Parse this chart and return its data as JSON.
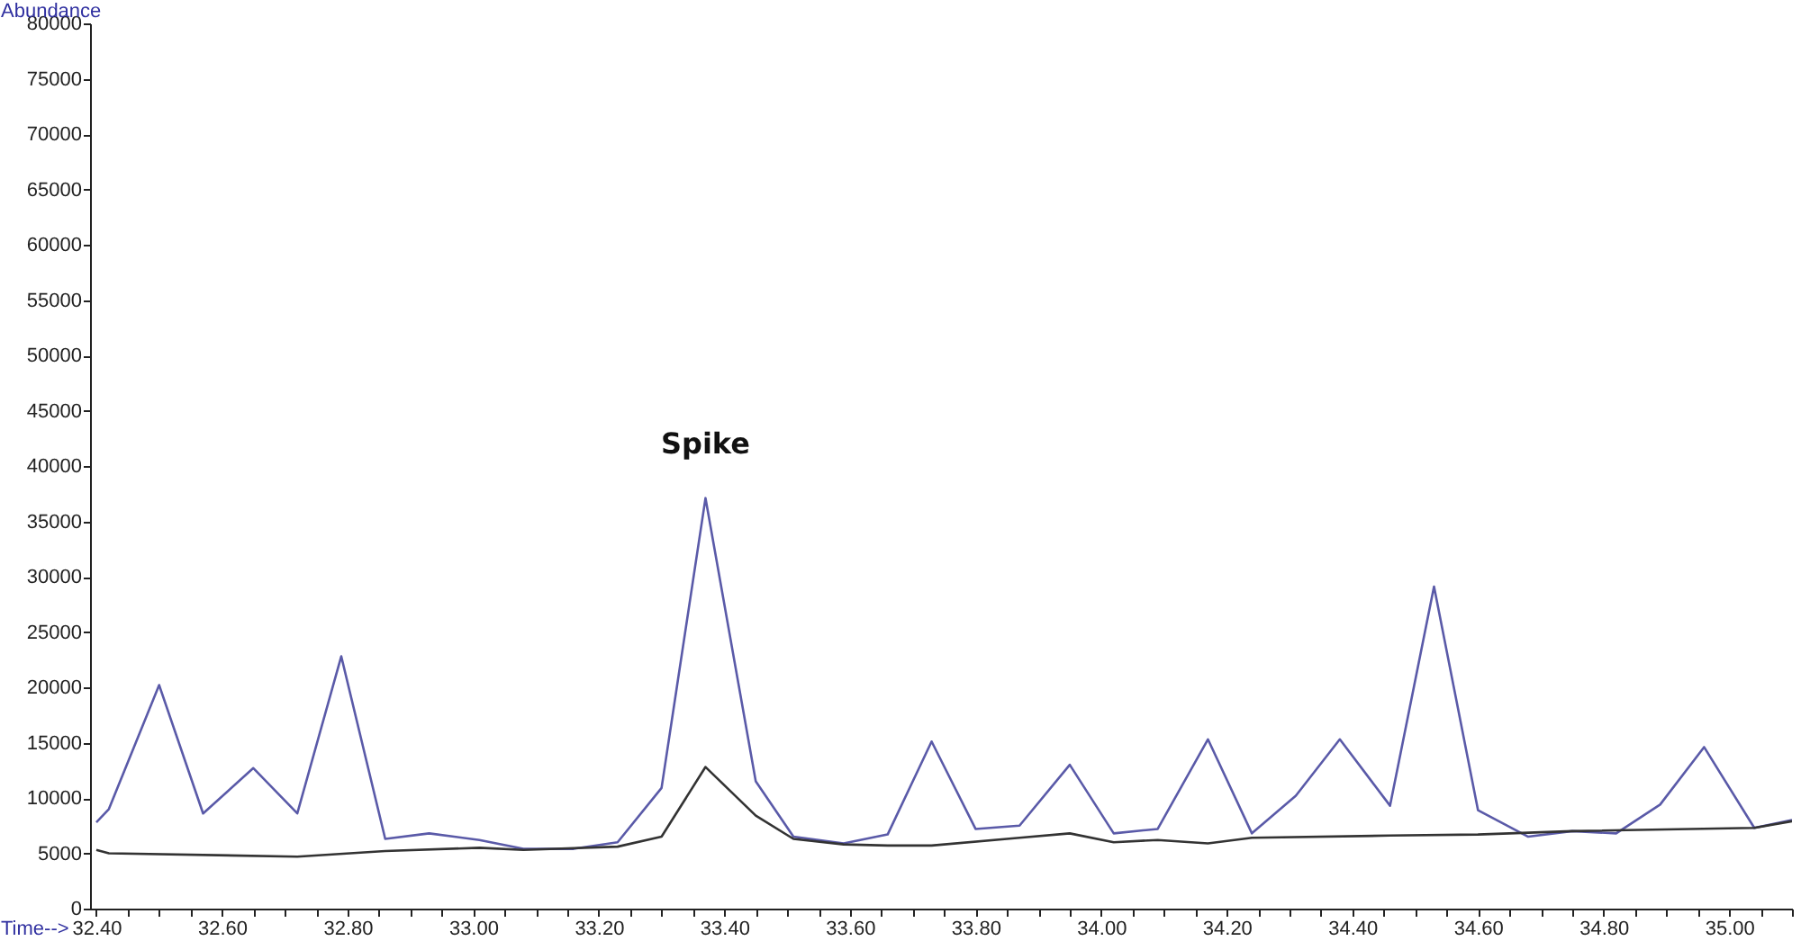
{
  "chart_data": {
    "type": "line",
    "xlabel": "Time-->",
    "ylabel": "Abundance",
    "xlim": [
      32.39,
      35.1
    ],
    "ylim": [
      0,
      80000
    ],
    "yticks": [
      0,
      5000,
      10000,
      15000,
      20000,
      25000,
      30000,
      35000,
      40000,
      45000,
      50000,
      55000,
      60000,
      65000,
      70000,
      75000,
      80000
    ],
    "xticks": [
      {
        "value": 32.4,
        "label": "32.40"
      },
      {
        "value": 32.45,
        "label": null
      },
      {
        "value": 32.5,
        "label": null
      },
      {
        "value": 32.55,
        "label": null
      },
      {
        "value": 32.6,
        "label": "32.60"
      },
      {
        "value": 32.65,
        "label": null
      },
      {
        "value": 32.7,
        "label": null
      },
      {
        "value": 32.75,
        "label": null
      },
      {
        "value": 32.8,
        "label": "32.80"
      },
      {
        "value": 32.85,
        "label": null
      },
      {
        "value": 32.9,
        "label": null
      },
      {
        "value": 32.95,
        "label": null
      },
      {
        "value": 33.0,
        "label": "33.00"
      },
      {
        "value": 33.05,
        "label": null
      },
      {
        "value": 33.1,
        "label": null
      },
      {
        "value": 33.15,
        "label": null
      },
      {
        "value": 33.2,
        "label": "33.20"
      },
      {
        "value": 33.25,
        "label": null
      },
      {
        "value": 33.3,
        "label": null
      },
      {
        "value": 33.35,
        "label": null
      },
      {
        "value": 33.4,
        "label": "33.40"
      },
      {
        "value": 33.45,
        "label": null
      },
      {
        "value": 33.5,
        "label": null
      },
      {
        "value": 33.55,
        "label": null
      },
      {
        "value": 33.6,
        "label": "33.60"
      },
      {
        "value": 33.65,
        "label": null
      },
      {
        "value": 33.7,
        "label": null
      },
      {
        "value": 33.75,
        "label": null
      },
      {
        "value": 33.8,
        "label": "33.80"
      },
      {
        "value": 33.85,
        "label": null
      },
      {
        "value": 33.9,
        "label": null
      },
      {
        "value": 33.95,
        "label": null
      },
      {
        "value": 34.0,
        "label": "34.00"
      },
      {
        "value": 34.05,
        "label": null
      },
      {
        "value": 34.1,
        "label": null
      },
      {
        "value": 34.15,
        "label": null
      },
      {
        "value": 34.2,
        "label": "34.20"
      },
      {
        "value": 34.25,
        "label": null
      },
      {
        "value": 34.3,
        "label": null
      },
      {
        "value": 34.35,
        "label": null
      },
      {
        "value": 34.4,
        "label": "34.40"
      },
      {
        "value": 34.45,
        "label": null
      },
      {
        "value": 34.5,
        "label": null
      },
      {
        "value": 34.55,
        "label": null
      },
      {
        "value": 34.6,
        "label": "34.60"
      },
      {
        "value": 34.65,
        "label": null
      },
      {
        "value": 34.7,
        "label": null
      },
      {
        "value": 34.75,
        "label": null
      },
      {
        "value": 34.8,
        "label": "34.80"
      },
      {
        "value": 34.85,
        "label": null
      },
      {
        "value": 34.9,
        "label": null
      },
      {
        "value": 34.95,
        "label": null
      },
      {
        "value": 35.0,
        "label": "35.00"
      },
      {
        "value": 35.05,
        "label": null
      },
      {
        "value": 35.1,
        "label": null
      }
    ],
    "grid": false,
    "marker": "none",
    "line_style": "solid",
    "annotations": [
      {
        "text": "Spike",
        "x": 33.37,
        "y": 37100
      }
    ],
    "series": [
      {
        "color": "#5a5aa8",
        "x": [
          32.4,
          32.42,
          32.5,
          32.57,
          32.65,
          32.72,
          32.79,
          32.86,
          32.93,
          33.01,
          33.08,
          33.16,
          33.23,
          33.3,
          33.37,
          33.45,
          33.51,
          33.59,
          33.66,
          33.73,
          33.8,
          33.87,
          33.95,
          34.02,
          34.09,
          34.17,
          34.24,
          34.31,
          34.38,
          34.46,
          34.53,
          34.6,
          34.68,
          34.75,
          34.82,
          34.89,
          34.96,
          35.04,
          35.1
        ],
        "values": [
          7800,
          9000,
          20200,
          8600,
          12700,
          8600,
          22800,
          6300,
          6800,
          6200,
          5400,
          5400,
          6000,
          10900,
          37100,
          11500,
          6500,
          5900,
          6700,
          15100,
          7200,
          7500,
          13000,
          6800,
          7200,
          15300,
          6800,
          10200,
          15300,
          9300,
          29100,
          8900,
          6500,
          7000,
          6800,
          9400,
          14600,
          7300,
          8000
        ]
      },
      {
        "color": "#333333",
        "x": [
          32.4,
          32.42,
          32.72,
          32.86,
          33.01,
          33.08,
          33.23,
          33.3,
          33.37,
          33.45,
          33.51,
          33.59,
          33.66,
          33.73,
          33.87,
          33.95,
          34.02,
          34.09,
          34.17,
          34.24,
          34.46,
          34.6,
          34.75,
          35.04,
          35.1
        ],
        "values": [
          5300,
          5000,
          4700,
          5200,
          5500,
          5300,
          5600,
          6500,
          12800,
          8400,
          6300,
          5800,
          5700,
          5700,
          6400,
          6800,
          6000,
          6200,
          5900,
          6400,
          6600,
          6700,
          7000,
          7300,
          7900
        ]
      }
    ]
  }
}
